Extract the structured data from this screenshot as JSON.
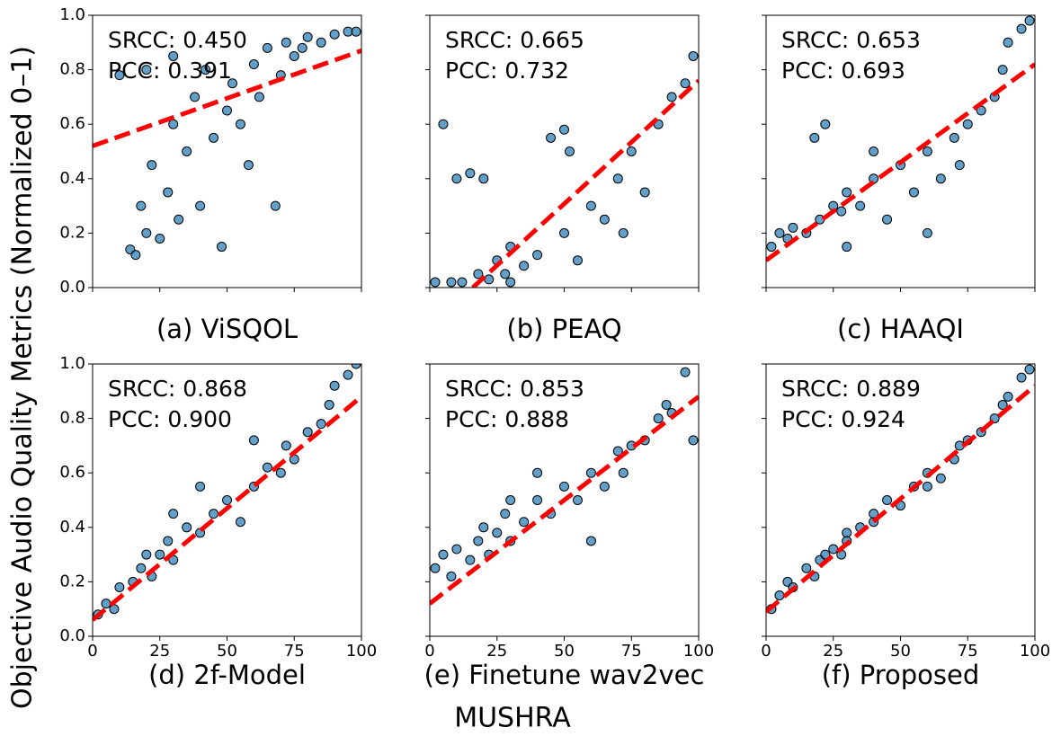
{
  "axis_labels": {
    "x": "MUSHRA",
    "y": "Objective Audio Quality Metrics (Normalized 0–1)"
  },
  "chart_data": [
    {
      "type": "scatter",
      "title": "(a) ViSQOL",
      "annotations": [
        "SRCC: 0.450",
        "PCC: 0.391"
      ],
      "x": [
        14,
        16,
        18,
        20,
        22,
        25,
        28,
        30,
        32,
        35,
        38,
        40,
        42,
        45,
        48,
        50,
        52,
        55,
        58,
        60,
        62,
        65,
        68,
        70,
        72,
        75,
        78,
        80,
        85,
        90,
        95,
        98,
        10,
        20,
        30
      ],
      "values": [
        0.14,
        0.12,
        0.3,
        0.2,
        0.45,
        0.18,
        0.35,
        0.6,
        0.25,
        0.5,
        0.7,
        0.3,
        0.8,
        0.55,
        0.15,
        0.65,
        0.75,
        0.6,
        0.45,
        0.82,
        0.7,
        0.88,
        0.3,
        0.78,
        0.9,
        0.85,
        0.88,
        0.92,
        0.9,
        0.93,
        0.94,
        0.94,
        0.78,
        0.8,
        0.85
      ],
      "fit": {
        "x": [
          0,
          100
        ],
        "values": [
          0.52,
          0.87
        ]
      },
      "color": "#1f77b4",
      "fit_color": "#ff0000",
      "xlim": [
        0,
        100
      ],
      "ylim": [
        0,
        1
      ],
      "xticks": [
        0,
        25,
        50,
        75,
        100
      ],
      "yticks": [
        {
          "value": 0,
          "label": "0.0"
        },
        0.2,
        0.4,
        0.6,
        0.8,
        {
          "value": 1,
          "label": "1.0"
        }
      ],
      "tick_labels": {
        "x": false,
        "y": true
      }
    },
    {
      "type": "scatter",
      "title": "(b) PEAQ",
      "annotations": [
        "SRCC: 0.665",
        "PCC: 0.732"
      ],
      "x": [
        2,
        5,
        8,
        10,
        12,
        15,
        18,
        20,
        22,
        25,
        28,
        30,
        35,
        40,
        45,
        50,
        55,
        60,
        65,
        70,
        72,
        75,
        80,
        85,
        90,
        95,
        98,
        50,
        52,
        30
      ],
      "values": [
        0.02,
        0.6,
        0.02,
        0.4,
        0.02,
        0.42,
        0.05,
        0.4,
        0.03,
        0.1,
        0.05,
        0.15,
        0.08,
        0.12,
        0.55,
        0.2,
        0.1,
        0.3,
        0.25,
        0.4,
        0.2,
        0.5,
        0.35,
        0.6,
        0.7,
        0.75,
        0.85,
        0.58,
        0.5,
        0.02
      ],
      "fit": {
        "x": [
          16,
          100
        ],
        "values": [
          0,
          0.76
        ]
      },
      "color": "#1f77b4",
      "fit_color": "#ff0000",
      "xlim": [
        0,
        100
      ],
      "ylim": [
        0,
        1
      ],
      "xticks": [
        0,
        25,
        50,
        75,
        100
      ],
      "yticks": [
        {
          "value": 0,
          "label": "0.0"
        },
        0.2,
        0.4,
        0.6,
        0.8,
        {
          "value": 1,
          "label": "1.0"
        }
      ],
      "tick_labels": {
        "x": false,
        "y": false
      }
    },
    {
      "type": "scatter",
      "title": "(c) HAAQI",
      "annotations": [
        "SRCC: 0.653",
        "PCC: 0.693"
      ],
      "x": [
        2,
        5,
        8,
        10,
        15,
        18,
        20,
        22,
        25,
        28,
        30,
        35,
        40,
        45,
        50,
        55,
        60,
        65,
        70,
        72,
        75,
        80,
        85,
        88,
        90,
        95,
        98,
        30,
        60,
        40
      ],
      "values": [
        0.15,
        0.2,
        0.18,
        0.22,
        0.2,
        0.55,
        0.25,
        0.6,
        0.3,
        0.28,
        0.35,
        0.3,
        0.4,
        0.25,
        0.45,
        0.35,
        0.5,
        0.4,
        0.55,
        0.45,
        0.6,
        0.65,
        0.7,
        0.8,
        0.9,
        0.95,
        0.98,
        0.15,
        0.2,
        0.5
      ],
      "fit": {
        "x": [
          0,
          100
        ],
        "values": [
          0.1,
          0.82
        ]
      },
      "color": "#1f77b4",
      "fit_color": "#ff0000",
      "xlim": [
        0,
        100
      ],
      "ylim": [
        0,
        1
      ],
      "xticks": [
        0,
        25,
        50,
        75,
        100
      ],
      "yticks": [
        {
          "value": 0,
          "label": "0.0"
        },
        0.2,
        0.4,
        0.6,
        0.8,
        {
          "value": 1,
          "label": "1.0"
        }
      ],
      "tick_labels": {
        "x": false,
        "y": false
      }
    },
    {
      "type": "scatter",
      "title": "(d) 2f-Model",
      "annotations": [
        "SRCC: 0.868",
        "PCC: 0.900"
      ],
      "x": [
        2,
        5,
        8,
        10,
        15,
        18,
        20,
        22,
        25,
        28,
        30,
        35,
        40,
        45,
        50,
        55,
        60,
        65,
        70,
        72,
        75,
        80,
        85,
        88,
        90,
        95,
        98,
        30,
        60,
        40
      ],
      "values": [
        0.08,
        0.12,
        0.1,
        0.18,
        0.2,
        0.25,
        0.3,
        0.22,
        0.3,
        0.35,
        0.28,
        0.4,
        0.38,
        0.45,
        0.5,
        0.42,
        0.55,
        0.62,
        0.6,
        0.7,
        0.65,
        0.75,
        0.78,
        0.85,
        0.92,
        0.96,
        1.0,
        0.45,
        0.72,
        0.55
      ],
      "fit": {
        "x": [
          0,
          100
        ],
        "values": [
          0.06,
          0.88
        ]
      },
      "color": "#1f77b4",
      "fit_color": "#ff0000",
      "xlim": [
        0,
        100
      ],
      "ylim": [
        0,
        1
      ],
      "xticks": [
        0,
        25,
        50,
        75,
        100
      ],
      "yticks": [
        {
          "value": 0,
          "label": "0.0"
        },
        0.2,
        0.4,
        0.6,
        0.8,
        {
          "value": 1,
          "label": "1.0"
        }
      ],
      "tick_labels": {
        "x": true,
        "y": true
      }
    },
    {
      "type": "scatter",
      "title": "(e) Finetune wav2vec",
      "annotations": [
        "SRCC: 0.853",
        "PCC: 0.888"
      ],
      "x": [
        2,
        5,
        8,
        10,
        15,
        18,
        20,
        22,
        25,
        28,
        30,
        35,
        40,
        45,
        50,
        55,
        60,
        65,
        70,
        72,
        75,
        80,
        85,
        88,
        90,
        95,
        98,
        30,
        60,
        40
      ],
      "values": [
        0.25,
        0.3,
        0.22,
        0.32,
        0.28,
        0.35,
        0.4,
        0.3,
        0.38,
        0.45,
        0.35,
        0.42,
        0.5,
        0.45,
        0.55,
        0.5,
        0.6,
        0.55,
        0.68,
        0.6,
        0.7,
        0.72,
        0.8,
        0.85,
        0.82,
        0.97,
        0.72,
        0.5,
        0.35,
        0.6
      ],
      "fit": {
        "x": [
          0,
          100
        ],
        "values": [
          0.12,
          0.88
        ]
      },
      "color": "#1f77b4",
      "fit_color": "#ff0000",
      "xlim": [
        0,
        100
      ],
      "ylim": [
        0,
        1
      ],
      "xticks": [
        0,
        25,
        50,
        75,
        100
      ],
      "yticks": [
        {
          "value": 0,
          "label": "0.0"
        },
        0.2,
        0.4,
        0.6,
        0.8,
        {
          "value": 1,
          "label": "1.0"
        }
      ],
      "tick_labels": {
        "x": true,
        "y": false
      }
    },
    {
      "type": "scatter",
      "title": "(f) Proposed",
      "annotations": [
        "SRCC: 0.889",
        "PCC: 0.924"
      ],
      "x": [
        2,
        5,
        8,
        10,
        15,
        18,
        20,
        22,
        25,
        28,
        30,
        35,
        40,
        45,
        50,
        55,
        60,
        65,
        70,
        72,
        75,
        80,
        85,
        88,
        90,
        95,
        98,
        30,
        60,
        40
      ],
      "values": [
        0.1,
        0.15,
        0.2,
        0.18,
        0.25,
        0.22,
        0.28,
        0.3,
        0.32,
        0.3,
        0.38,
        0.4,
        0.42,
        0.5,
        0.48,
        0.55,
        0.6,
        0.58,
        0.65,
        0.7,
        0.72,
        0.75,
        0.8,
        0.85,
        0.88,
        0.95,
        0.98,
        0.35,
        0.55,
        0.45
      ],
      "fit": {
        "x": [
          0,
          100
        ],
        "values": [
          0.09,
          0.92
        ]
      },
      "color": "#1f77b4",
      "fit_color": "#ff0000",
      "xlim": [
        0,
        100
      ],
      "ylim": [
        0,
        1
      ],
      "xticks": [
        0,
        25,
        50,
        75,
        100
      ],
      "yticks": [
        {
          "value": 0,
          "label": "0.0"
        },
        0.2,
        0.4,
        0.6,
        0.8,
        {
          "value": 1,
          "label": "1.0"
        }
      ],
      "tick_labels": {
        "x": true,
        "y": false
      }
    }
  ]
}
